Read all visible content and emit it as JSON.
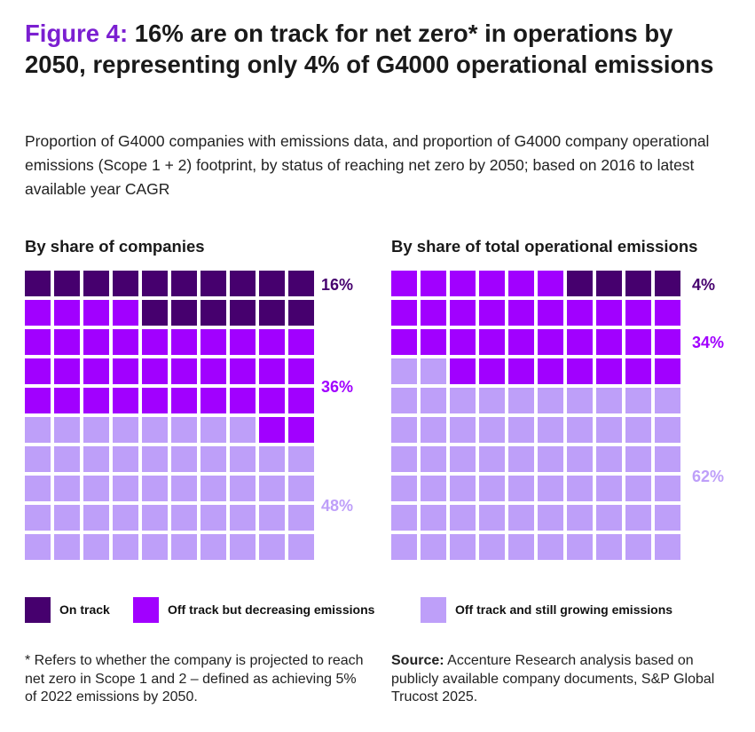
{
  "title": {
    "figure_label": "Figure 4:",
    "text": "16% are on track for net zero* in operations by 2050, representing only 4% of G4000 operational emissions"
  },
  "subtitle": "Proportion of G4000 companies with emissions data, and proportion of G4000 company operational emissions (Scope 1 + 2) footprint, by status of reaching net zero by 2050; based on 2016 to latest available year CAGR",
  "colors": {
    "on_track": "#46006e",
    "off_track_decreasing": "#a100ff",
    "off_track_growing": "#be9ff9",
    "figure_label": "#7b1fd1"
  },
  "chart_data": [
    {
      "type": "waffle",
      "title": "By share of companies",
      "grid": "10x10",
      "categories": [
        "On track",
        "Off track but decreasing emissions",
        "Off track and still growing emissions"
      ],
      "values": [
        16,
        36,
        48
      ],
      "value_labels": [
        "16%",
        "36%",
        "48%"
      ],
      "unit": "%"
    },
    {
      "type": "waffle",
      "title": "By share of total operational emissions",
      "grid": "10x10",
      "categories": [
        "On track",
        "Off track but decreasing emissions",
        "Off track and still growing emissions"
      ],
      "values": [
        4,
        34,
        62
      ],
      "value_labels": [
        "4%",
        "34%",
        "62%"
      ],
      "unit": "%"
    }
  ],
  "legend": [
    {
      "label": "On track",
      "color_key": "on_track"
    },
    {
      "label": "Off track but decreasing emissions",
      "color_key": "off_track_decreasing"
    },
    {
      "label": "Off track and still growing emissions",
      "color_key": "off_track_growing"
    }
  ],
  "footnote": "* Refers to whether the company is projected to reach net zero in Scope 1 and 2 – defined as achieving 5% of 2022 emissions by 2050.",
  "source": {
    "label": "Source:",
    "text": " Accenture Research analysis based on publicly available company documents, S&P Global Trucost 2025."
  }
}
